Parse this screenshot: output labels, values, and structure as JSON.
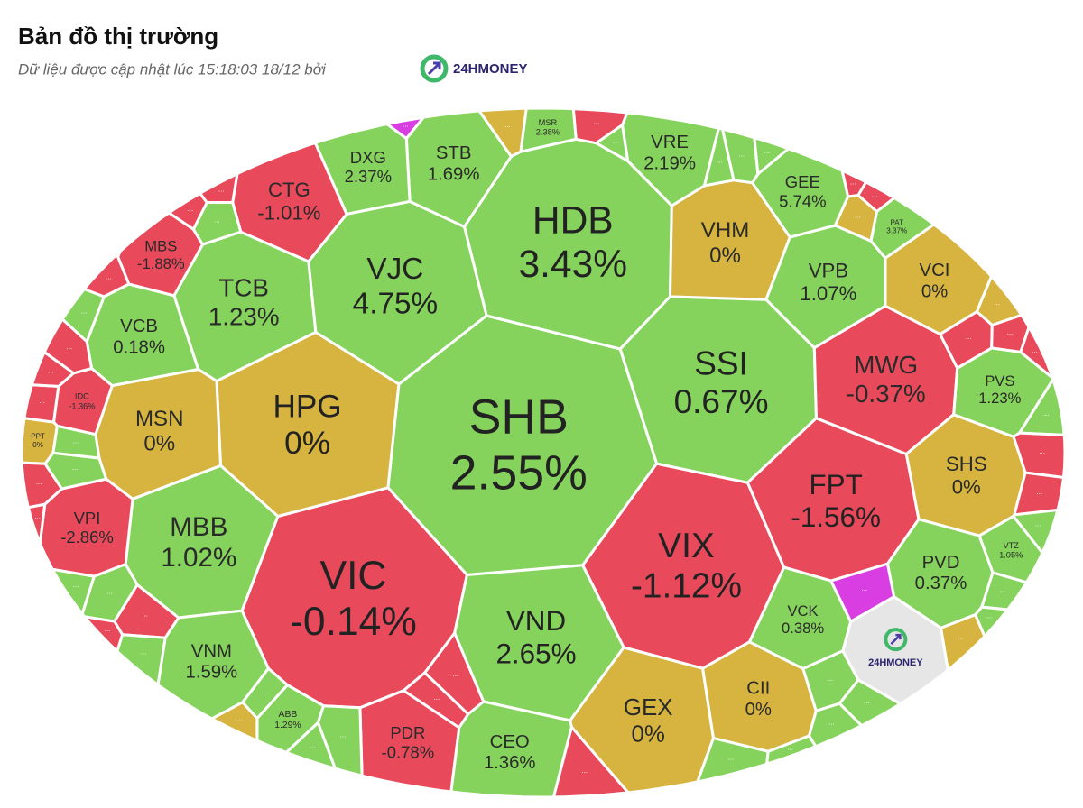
{
  "chart_data": {
    "type": "treemap",
    "title": "Bản đồ thị trường",
    "subtitle": "Dữ liệu được cập nhật lúc 15:18:03 18/12 bởi",
    "brand": "24HMONEY",
    "categories": [
      "SHB",
      "HDB",
      "VIC",
      "VIX",
      "SSI",
      "HPG",
      "VJC",
      "VND",
      "FPT",
      "MWG",
      "TCB",
      "MBB",
      "VHM",
      "VPB",
      "VCI",
      "SHS",
      "PVD",
      "GEX",
      "CII",
      "CEO",
      "PDR",
      "VNM",
      "MSN",
      "VCB",
      "CTG",
      "STB",
      "DXG",
      "VRE",
      "GEE",
      "VCK",
      "PVS",
      "VPI",
      "MBS",
      "MSR",
      "PAT",
      "ABB",
      "IDC",
      "PPT",
      "VTZ"
    ],
    "values": [
      2.55,
      3.43,
      -0.14,
      -1.12,
      0.67,
      0,
      4.75,
      2.65,
      -1.56,
      -0.37,
      1.23,
      1.02,
      0,
      1.07,
      0,
      0,
      0.37,
      0,
      0,
      1.36,
      -0.78,
      1.59,
      0,
      0.18,
      -1.01,
      1.69,
      2.37,
      2.19,
      5.74,
      0.38,
      1.23,
      -2.86,
      -1.88,
      2.38,
      3.37,
      1.29,
      -1.36,
      0,
      1.05
    ],
    "value_labels": [
      "2.55%",
      "3.43%",
      "-0.14%",
      "-1.12%",
      "0.67%",
      "0%",
      "4.75%",
      "2.65%",
      "-1.56%",
      "-0.37%",
      "1.23%",
      "1.02%",
      "0%",
      "1.07%",
      "0%",
      "0%",
      "0.37%",
      "0%",
      "0%",
      "1.36%",
      "-0.78%",
      "1.59%",
      "0%",
      "0.18%",
      "-1.01%",
      "1.69%",
      "2.37%",
      "2.19%",
      "5.74%",
      "0.38%",
      "1.23%",
      "-2.86%",
      "-1.88%",
      "2.38%",
      "3.37%",
      "1.29%",
      "-1.36%",
      "0%",
      "1.05%"
    ],
    "colors": {
      "up": "#85d35c",
      "down": "#e84a5c",
      "flat": "#d6b43f",
      "ceiling": "#d83ee2",
      "brand": "#e6e6e6"
    },
    "others": {
      "labels": [
        "...",
        "...",
        "...",
        "...",
        "...",
        "...",
        "...",
        "...",
        "...",
        "...",
        "...",
        "...",
        "...",
        "...",
        "...",
        "...",
        "...",
        "...",
        "...",
        "...",
        "...",
        "...",
        "...",
        "...",
        "...",
        "...",
        "...",
        "...",
        "...",
        "...",
        "...",
        "...",
        "...",
        "...",
        "...",
        "...",
        "...",
        "...",
        "...",
        "...",
        "...",
        "...",
        "...",
        "...",
        "...",
        "...",
        "...",
        "...",
        "...",
        "...",
        "...",
        "..."
      ],
      "colors": [
        "flat",
        "down",
        "up",
        "up",
        "up",
        "down",
        "down",
        "flat",
        "flat",
        "down",
        "down",
        "down",
        "up",
        "down",
        "down",
        "up",
        "up",
        "flat",
        "up",
        "ceiling",
        "up",
        "up",
        "up",
        "up",
        "up",
        "down",
        "down",
        "down",
        "up",
        "up",
        "flat",
        "up",
        "down",
        "up",
        "up",
        "down",
        "up",
        "down",
        "down",
        "up",
        "up",
        "down",
        "down",
        "down",
        "up",
        "down",
        "down",
        "down",
        "up",
        "down",
        "ceiling",
        "up"
      ]
    }
  }
}
